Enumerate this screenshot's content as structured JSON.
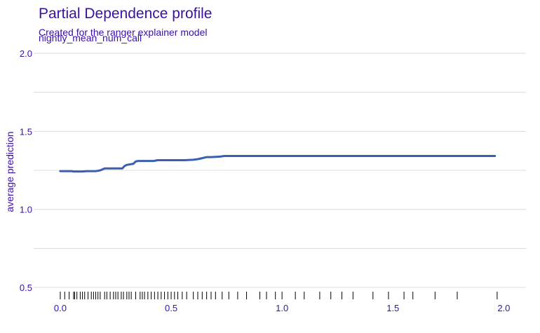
{
  "chart_data": {
    "type": "line",
    "title": "Partial Dependence profile",
    "subtitle": "Created for the ranger explainer model",
    "panel_label": "nightly_mean_num_call",
    "xlabel": "",
    "ylabel": "average prediction",
    "xlim": [
      -0.12,
      2.1
    ],
    "ylim": [
      0.5,
      2.0
    ],
    "x_ticks": [
      "0.0",
      "0.5",
      "1.0",
      "1.5",
      "2.0"
    ],
    "x_tick_values": [
      0.0,
      0.5,
      1.0,
      1.5,
      2.0
    ],
    "y_ticks": [
      "0.5",
      "1.0",
      "1.5",
      "2.0"
    ],
    "y_tick_values": [
      0.5,
      1.0,
      1.5,
      2.0
    ],
    "grid": true,
    "line_color": "#3b5fb0",
    "text_color": "#3b0fa6",
    "series": [
      {
        "x": [
          0.0,
          0.05,
          0.06,
          0.1,
          0.12,
          0.16,
          0.18,
          0.2,
          0.22,
          0.28,
          0.29,
          0.3,
          0.33,
          0.34,
          0.35,
          0.42,
          0.44,
          0.5,
          0.56,
          0.6,
          0.62,
          0.64,
          0.66,
          0.68,
          0.72,
          0.74,
          1.0,
          1.5,
          1.96
        ],
        "values": [
          1.245,
          1.245,
          1.243,
          1.243,
          1.245,
          1.245,
          1.25,
          1.262,
          1.262,
          1.262,
          1.278,
          1.285,
          1.292,
          1.307,
          1.31,
          1.31,
          1.315,
          1.315,
          1.315,
          1.318,
          1.322,
          1.328,
          1.335,
          1.335,
          1.338,
          1.342,
          1.342,
          1.342,
          1.342
        ]
      }
    ],
    "rug_x": [
      0.0,
      0.02,
      0.04,
      0.06,
      0.065,
      0.075,
      0.09,
      0.1,
      0.11,
      0.125,
      0.14,
      0.15,
      0.16,
      0.17,
      0.18,
      0.2,
      0.21,
      0.225,
      0.24,
      0.25,
      0.26,
      0.275,
      0.285,
      0.3,
      0.31,
      0.32,
      0.34,
      0.36,
      0.37,
      0.38,
      0.395,
      0.41,
      0.425,
      0.44,
      0.455,
      0.47,
      0.485,
      0.5,
      0.515,
      0.53,
      0.55,
      0.57,
      0.6,
      0.62,
      0.64,
      0.66,
      0.68,
      0.7,
      0.73,
      0.76,
      0.8,
      0.84,
      0.9,
      0.93,
      0.97,
      1.0,
      1.06,
      1.1,
      1.17,
      1.22,
      1.27,
      1.32,
      1.41,
      1.48,
      1.55,
      1.59,
      1.69,
      1.79,
      1.97
    ]
  }
}
